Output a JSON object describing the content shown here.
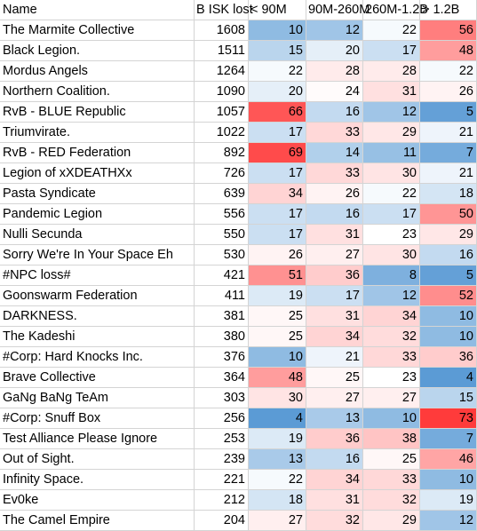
{
  "table": {
    "headers": [
      "Name",
      "B ISK lost",
      "< 90M",
      "90M-260M",
      "260M-1.2B",
      "> 1.2B"
    ],
    "rows": [
      {
        "name": "The Marmite Collective",
        "isk": 1608,
        "b": [
          10,
          12,
          22,
          56
        ]
      },
      {
        "name": "Black Legion.",
        "isk": 1511,
        "b": [
          15,
          20,
          17,
          48
        ]
      },
      {
        "name": "Mordus Angels",
        "isk": 1264,
        "b": [
          22,
          28,
          28,
          22
        ]
      },
      {
        "name": "Northern Coalition.",
        "isk": 1090,
        "b": [
          20,
          24,
          31,
          26
        ]
      },
      {
        "name": "RvB - BLUE Republic",
        "isk": 1057,
        "b": [
          66,
          16,
          12,
          5
        ]
      },
      {
        "name": "Triumvirate.",
        "isk": 1022,
        "b": [
          17,
          33,
          29,
          21
        ]
      },
      {
        "name": "RvB - RED Federation",
        "isk": 892,
        "b": [
          69,
          14,
          11,
          7
        ]
      },
      {
        "name": "Legion of xXDEATHXx",
        "isk": 726,
        "b": [
          17,
          33,
          30,
          21
        ]
      },
      {
        "name": "Pasta Syndicate",
        "isk": 639,
        "b": [
          34,
          26,
          22,
          18
        ]
      },
      {
        "name": "Pandemic Legion",
        "isk": 556,
        "b": [
          17,
          16,
          17,
          50
        ]
      },
      {
        "name": "Nulli Secunda",
        "isk": 550,
        "b": [
          17,
          31,
          23,
          29
        ]
      },
      {
        "name": "Sorry We're In Your Space Eh",
        "isk": 530,
        "b": [
          26,
          27,
          30,
          16
        ]
      },
      {
        "name": "#NPC loss#",
        "isk": 421,
        "b": [
          51,
          36,
          8,
          5
        ]
      },
      {
        "name": "Goonswarm Federation",
        "isk": 411,
        "b": [
          19,
          17,
          12,
          52
        ]
      },
      {
        "name": "DARKNESS.",
        "isk": 381,
        "b": [
          25,
          31,
          34,
          10
        ]
      },
      {
        "name": "The Kadeshi",
        "isk": 380,
        "b": [
          25,
          34,
          32,
          10
        ]
      },
      {
        "name": "#Corp: Hard Knocks Inc.",
        "isk": 376,
        "b": [
          10,
          21,
          33,
          36
        ]
      },
      {
        "name": "Brave Collective",
        "isk": 364,
        "b": [
          48,
          25,
          23,
          4
        ]
      },
      {
        "name": "GaNg BaNg TeAm",
        "isk": 303,
        "b": [
          30,
          27,
          27,
          15
        ]
      },
      {
        "name": "#Corp: Snuff Box",
        "isk": 256,
        "b": [
          4,
          13,
          10,
          73
        ]
      },
      {
        "name": "Test Alliance Please Ignore",
        "isk": 253,
        "b": [
          19,
          36,
          38,
          7
        ]
      },
      {
        "name": "Out of Sight.",
        "isk": 239,
        "b": [
          13,
          16,
          25,
          46
        ]
      },
      {
        "name": "Infinity Space.",
        "isk": 221,
        "b": [
          22,
          34,
          33,
          10
        ]
      },
      {
        "name": "Ev0ke",
        "isk": 212,
        "b": [
          18,
          31,
          32,
          19
        ]
      },
      {
        "name": "The Camel Empire",
        "isk": 204,
        "b": [
          27,
          32,
          29,
          12
        ]
      }
    ]
  },
  "colors": {
    "scale_low": "#5b9bd5",
    "scale_mid": "#ffffff",
    "scale_high": "#ff3b3b",
    "grid": "#d4d4d4"
  }
}
